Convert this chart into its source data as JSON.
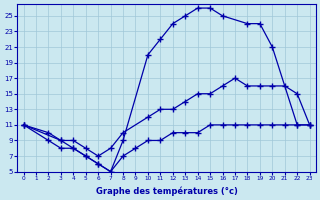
{
  "xlabel": "Graphe des températures (°c)",
  "bg_color": "#cbe8f0",
  "line_color": "#0000aa",
  "grid_color": "#a0c8d8",
  "xlim": [
    -0.5,
    23.5
  ],
  "ylim": [
    5,
    26.5
  ],
  "xticks": [
    0,
    1,
    2,
    3,
    4,
    5,
    6,
    7,
    8,
    9,
    10,
    11,
    12,
    13,
    14,
    15,
    16,
    17,
    18,
    19,
    20,
    21,
    22,
    23
  ],
  "yticks": [
    5,
    7,
    9,
    11,
    13,
    15,
    17,
    19,
    21,
    23,
    25
  ],
  "curve_top": {
    "x": [
      0,
      2,
      3,
      4,
      5,
      6,
      7,
      8,
      10,
      11,
      12,
      13,
      14,
      15,
      16,
      18,
      19,
      20,
      22,
      23
    ],
    "y": [
      11,
      10,
      9,
      8,
      7,
      6,
      5,
      9,
      20,
      22,
      24,
      25,
      26,
      26,
      25,
      24,
      24,
      21,
      11,
      11
    ]
  },
  "curve_mid": {
    "x": [
      0,
      3,
      4,
      5,
      6,
      7,
      8,
      10,
      11,
      12,
      13,
      14,
      15,
      16,
      17,
      18,
      19,
      20,
      21,
      22,
      23
    ],
    "y": [
      11,
      9,
      9,
      8,
      7,
      8,
      10,
      12,
      13,
      13,
      14,
      15,
      15,
      16,
      17,
      16,
      16,
      16,
      16,
      15,
      11
    ]
  },
  "curve_bot": {
    "x": [
      0,
      2,
      3,
      4,
      5,
      6,
      7,
      8,
      9,
      10,
      11,
      12,
      13,
      14,
      15,
      16,
      17,
      18,
      19,
      20,
      21,
      22,
      23
    ],
    "y": [
      11,
      9,
      8,
      8,
      7,
      6,
      5,
      7,
      8,
      9,
      9,
      10,
      10,
      10,
      11,
      11,
      11,
      11,
      11,
      11,
      11,
      11,
      11
    ]
  }
}
